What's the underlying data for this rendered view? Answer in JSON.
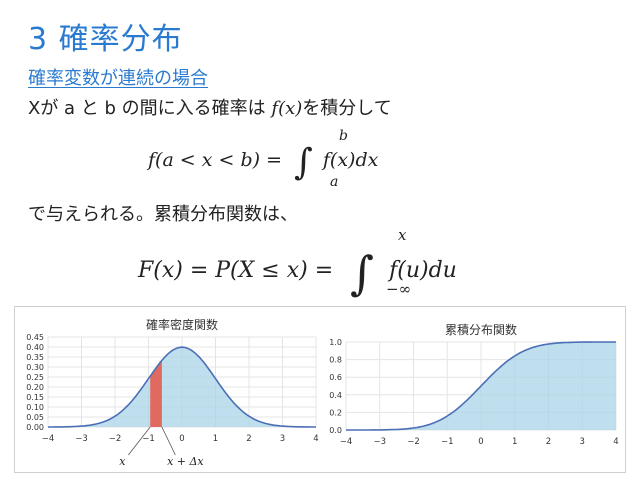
{
  "slide": {
    "title": "3 確率分布",
    "subtitle": "確率変数が連続の場合",
    "line1_text": "Xが a と b の間に入る確率は",
    "line1_math": "f(x)",
    "line1_tail": "を積分して",
    "eq1_lhs": "f(a < x < b) =",
    "eq1_upper": "b",
    "eq1_lower": "a",
    "eq1_rhs": "f(x)dx",
    "line2_text": "で与えられる。累積分布関数は、",
    "eq2_lhs": "F(x) = P(X ≤ x) =",
    "eq2_upper": "x",
    "eq2_lower": "−∞",
    "eq2_rhs": "f(u)du"
  },
  "chart_data": [
    {
      "type": "area",
      "title": "確率密度関数",
      "x_range": [
        -4,
        4
      ],
      "ylim": [
        0,
        0.45
      ],
      "xticks": [
        -4,
        -3,
        -2,
        -1,
        0,
        1,
        2,
        3,
        4
      ],
      "xtick_labels": [
        "−4",
        "−3",
        "−2",
        "−1",
        "0",
        "1",
        "2",
        "3",
        "4"
      ],
      "yticks": [
        0.0,
        0.05,
        0.1,
        0.15,
        0.2,
        0.25,
        0.3,
        0.35,
        0.4,
        0.45
      ],
      "ytick_labels": [
        "0.00",
        "0.05",
        "0.10",
        "0.15",
        "0.20",
        "0.25",
        "0.30",
        "0.35",
        "0.40",
        "0.45"
      ],
      "x": [
        -4.0,
        -3.5,
        -3.0,
        -2.5,
        -2.0,
        -1.5,
        -1.0,
        -0.5,
        0.0,
        0.5,
        1.0,
        1.5,
        2.0,
        2.5,
        3.0,
        3.5,
        4.0
      ],
      "y": [
        0.0001,
        0.0009,
        0.0044,
        0.0175,
        0.054,
        0.1295,
        0.242,
        0.3521,
        0.3989,
        0.3521,
        0.242,
        0.1295,
        0.054,
        0.0175,
        0.0044,
        0.0009,
        0.0001
      ],
      "highlight": {
        "x_start": -0.95,
        "x_end": -0.6
      },
      "annotations": [
        {
          "text": "x",
          "x": -1.78
        },
        {
          "text": "x + Δx",
          "x": 0.1
        }
      ],
      "grid": true,
      "colors": {
        "line": "#4a6fb5",
        "fill": "#a9d4e8",
        "highlight": "#e06a5f",
        "grid": "#e4e4e4"
      }
    },
    {
      "type": "area",
      "title": "累積分布関数",
      "x_range": [
        -4,
        4
      ],
      "ylim": [
        0,
        1.0
      ],
      "xticks": [
        -4,
        -3,
        -2,
        -1,
        0,
        1,
        2,
        3,
        4
      ],
      "xtick_labels": [
        "−4",
        "−3",
        "−2",
        "−1",
        "0",
        "1",
        "2",
        "3",
        "4"
      ],
      "yticks": [
        0.0,
        0.2,
        0.4,
        0.6,
        0.8,
        1.0
      ],
      "ytick_labels": [
        "0.0",
        "0.2",
        "0.4",
        "0.6",
        "0.8",
        "1.0"
      ],
      "x": [
        -4.0,
        -3.5,
        -3.0,
        -2.5,
        -2.0,
        -1.5,
        -1.0,
        -0.5,
        0.0,
        0.5,
        1.0,
        1.5,
        2.0,
        2.5,
        3.0,
        3.5,
        4.0
      ],
      "y": [
        0.0,
        0.0002,
        0.0013,
        0.0062,
        0.0228,
        0.0668,
        0.1587,
        0.3085,
        0.5,
        0.6915,
        0.8413,
        0.9332,
        0.9772,
        0.9938,
        0.9987,
        0.9998,
        1.0
      ],
      "grid": true,
      "colors": {
        "line": "#4a6fb5",
        "fill": "#a9d4e8",
        "grid": "#e4e4e4"
      }
    }
  ]
}
